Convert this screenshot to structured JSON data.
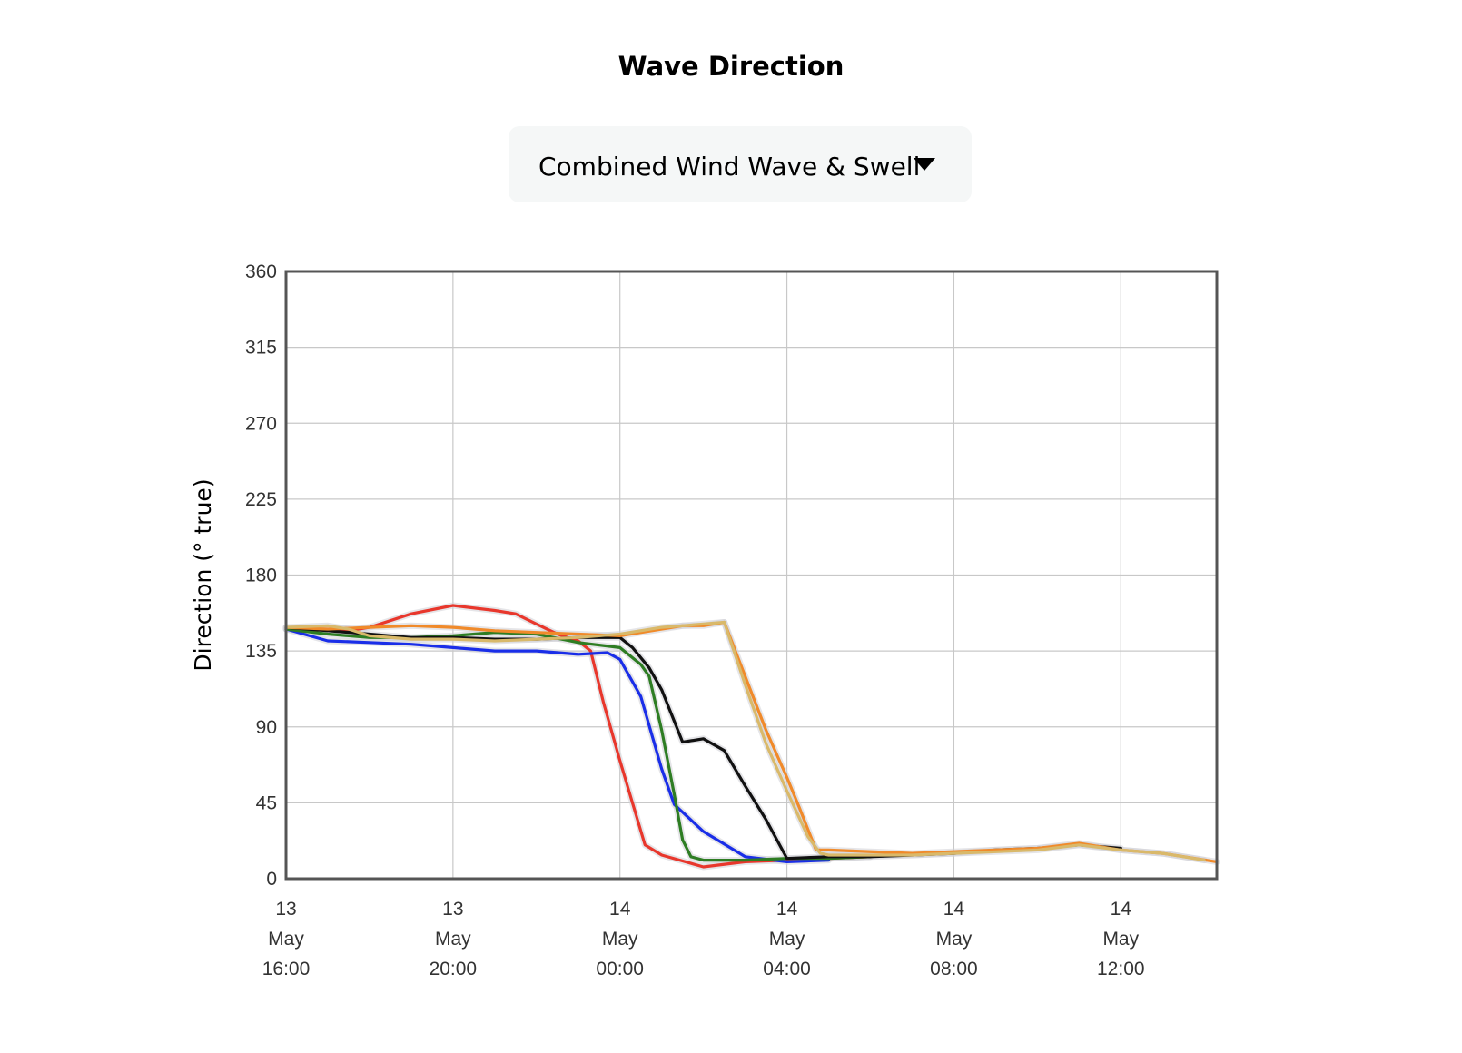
{
  "header": {
    "title": "Wave Direction"
  },
  "selector": {
    "selected": "Combined Wind Wave & Swell"
  },
  "chart_data": {
    "type": "line",
    "title": "Wave Direction",
    "ylabel": "Direction (° true)",
    "xlabel": "",
    "ylim": [
      0,
      360
    ],
    "yticks": [
      "0",
      "45",
      "90",
      "135",
      "180",
      "225",
      "270",
      "315",
      "360"
    ],
    "x_unit": "hours",
    "xlim": [
      0,
      22.3
    ],
    "xticks": [
      {
        "x": 0,
        "lines": [
          "13",
          "May",
          "16:00"
        ]
      },
      {
        "x": 4,
        "lines": [
          "13",
          "May",
          "20:00"
        ]
      },
      {
        "x": 8,
        "lines": [
          "14",
          "May",
          "00:00"
        ]
      },
      {
        "x": 12,
        "lines": [
          "14",
          "May",
          "04:00"
        ]
      },
      {
        "x": 16,
        "lines": [
          "14",
          "May",
          "08:00"
        ]
      },
      {
        "x": 20,
        "lines": [
          "14",
          "May",
          "12:00"
        ]
      }
    ],
    "grid": true,
    "series": [
      {
        "color": "#e8372c",
        "points": [
          [
            0,
            148
          ],
          [
            1.5,
            147
          ],
          [
            2,
            149
          ],
          [
            3,
            157
          ],
          [
            4,
            162
          ],
          [
            5,
            159
          ],
          [
            5.5,
            157
          ],
          [
            6,
            151
          ],
          [
            6.5,
            145
          ],
          [
            7,
            141
          ],
          [
            7.3,
            135
          ],
          [
            7.6,
            105
          ],
          [
            8.0,
            70
          ],
          [
            8.3,
            45
          ],
          [
            8.6,
            20
          ],
          [
            9,
            14
          ],
          [
            10,
            7
          ],
          [
            11,
            10
          ],
          [
            12,
            11
          ],
          [
            13,
            12
          ],
          [
            14,
            13
          ]
        ]
      },
      {
        "color": "#1a2ee8",
        "points": [
          [
            0,
            148
          ],
          [
            1,
            141
          ],
          [
            2,
            140
          ],
          [
            3,
            139
          ],
          [
            4,
            137
          ],
          [
            5,
            135
          ],
          [
            6,
            135
          ],
          [
            7,
            133
          ],
          [
            7.7,
            134
          ],
          [
            8,
            130
          ],
          [
            8.5,
            108
          ],
          [
            9,
            65
          ],
          [
            9.3,
            44
          ],
          [
            10,
            28
          ],
          [
            11,
            13
          ],
          [
            12,
            10
          ],
          [
            13,
            11
          ]
        ]
      },
      {
        "color": "#2e7d23",
        "points": [
          [
            0,
            148
          ],
          [
            1,
            145
          ],
          [
            2,
            143
          ],
          [
            3,
            143
          ],
          [
            4,
            144
          ],
          [
            5,
            146
          ],
          [
            6,
            145
          ],
          [
            7,
            140
          ],
          [
            8,
            137
          ],
          [
            8.5,
            127
          ],
          [
            8.7,
            120
          ],
          [
            9,
            88
          ],
          [
            9.3,
            50
          ],
          [
            9.5,
            23
          ],
          [
            9.7,
            13
          ],
          [
            10,
            11
          ],
          [
            11,
            11
          ],
          [
            12,
            12
          ],
          [
            13,
            12
          ],
          [
            14,
            13
          ]
        ]
      },
      {
        "color": "#111111",
        "points": [
          [
            0,
            149
          ],
          [
            1,
            147
          ],
          [
            2,
            145
          ],
          [
            3,
            143
          ],
          [
            4,
            143
          ],
          [
            5,
            142
          ],
          [
            6,
            142
          ],
          [
            7,
            143
          ],
          [
            8,
            143
          ],
          [
            8.3,
            137
          ],
          [
            8.7,
            125
          ],
          [
            9,
            112
          ],
          [
            9.5,
            81
          ],
          [
            10,
            83
          ],
          [
            10.5,
            76
          ],
          [
            11,
            55
          ],
          [
            11.5,
            35
          ],
          [
            12,
            12
          ],
          [
            13,
            13
          ],
          [
            14,
            13
          ],
          [
            15,
            14
          ],
          [
            16,
            15
          ],
          [
            17,
            17
          ],
          [
            18,
            18
          ],
          [
            19,
            20
          ],
          [
            20,
            18
          ]
        ]
      },
      {
        "color": "#f08a2a",
        "points": [
          [
            0,
            149
          ],
          [
            1,
            148
          ],
          [
            2,
            149
          ],
          [
            3,
            150
          ],
          [
            4,
            149
          ],
          [
            5,
            147
          ],
          [
            6,
            146
          ],
          [
            7,
            145
          ],
          [
            8,
            144
          ],
          [
            9,
            148
          ],
          [
            9.5,
            150
          ],
          [
            10,
            150
          ],
          [
            10.5,
            152
          ],
          [
            11,
            120
          ],
          [
            11.5,
            88
          ],
          [
            12,
            60
          ],
          [
            12.3,
            42
          ],
          [
            12.7,
            17
          ],
          [
            13,
            17
          ],
          [
            15,
            15
          ],
          [
            17,
            17
          ],
          [
            18,
            18
          ],
          [
            19,
            21
          ],
          [
            20,
            17
          ],
          [
            21,
            15
          ],
          [
            22.3,
            10
          ]
        ]
      },
      {
        "color": "#d9b96a",
        "points": [
          [
            0,
            149
          ],
          [
            1,
            150
          ],
          [
            1.5,
            148
          ],
          [
            2,
            144
          ],
          [
            3,
            142
          ],
          [
            4,
            142
          ],
          [
            5,
            141
          ],
          [
            6,
            142
          ],
          [
            7,
            143
          ],
          [
            8,
            145
          ],
          [
            9,
            149
          ],
          [
            10,
            151
          ],
          [
            10.5,
            152
          ],
          [
            11,
            115
          ],
          [
            11.5,
            80
          ],
          [
            12,
            52
          ],
          [
            12.5,
            25
          ],
          [
            12.8,
            15
          ],
          [
            13,
            14
          ],
          [
            15,
            14
          ],
          [
            17,
            16
          ],
          [
            18,
            17
          ],
          [
            19,
            20
          ],
          [
            20,
            17
          ],
          [
            21,
            15
          ],
          [
            22,
            11
          ]
        ]
      }
    ]
  }
}
